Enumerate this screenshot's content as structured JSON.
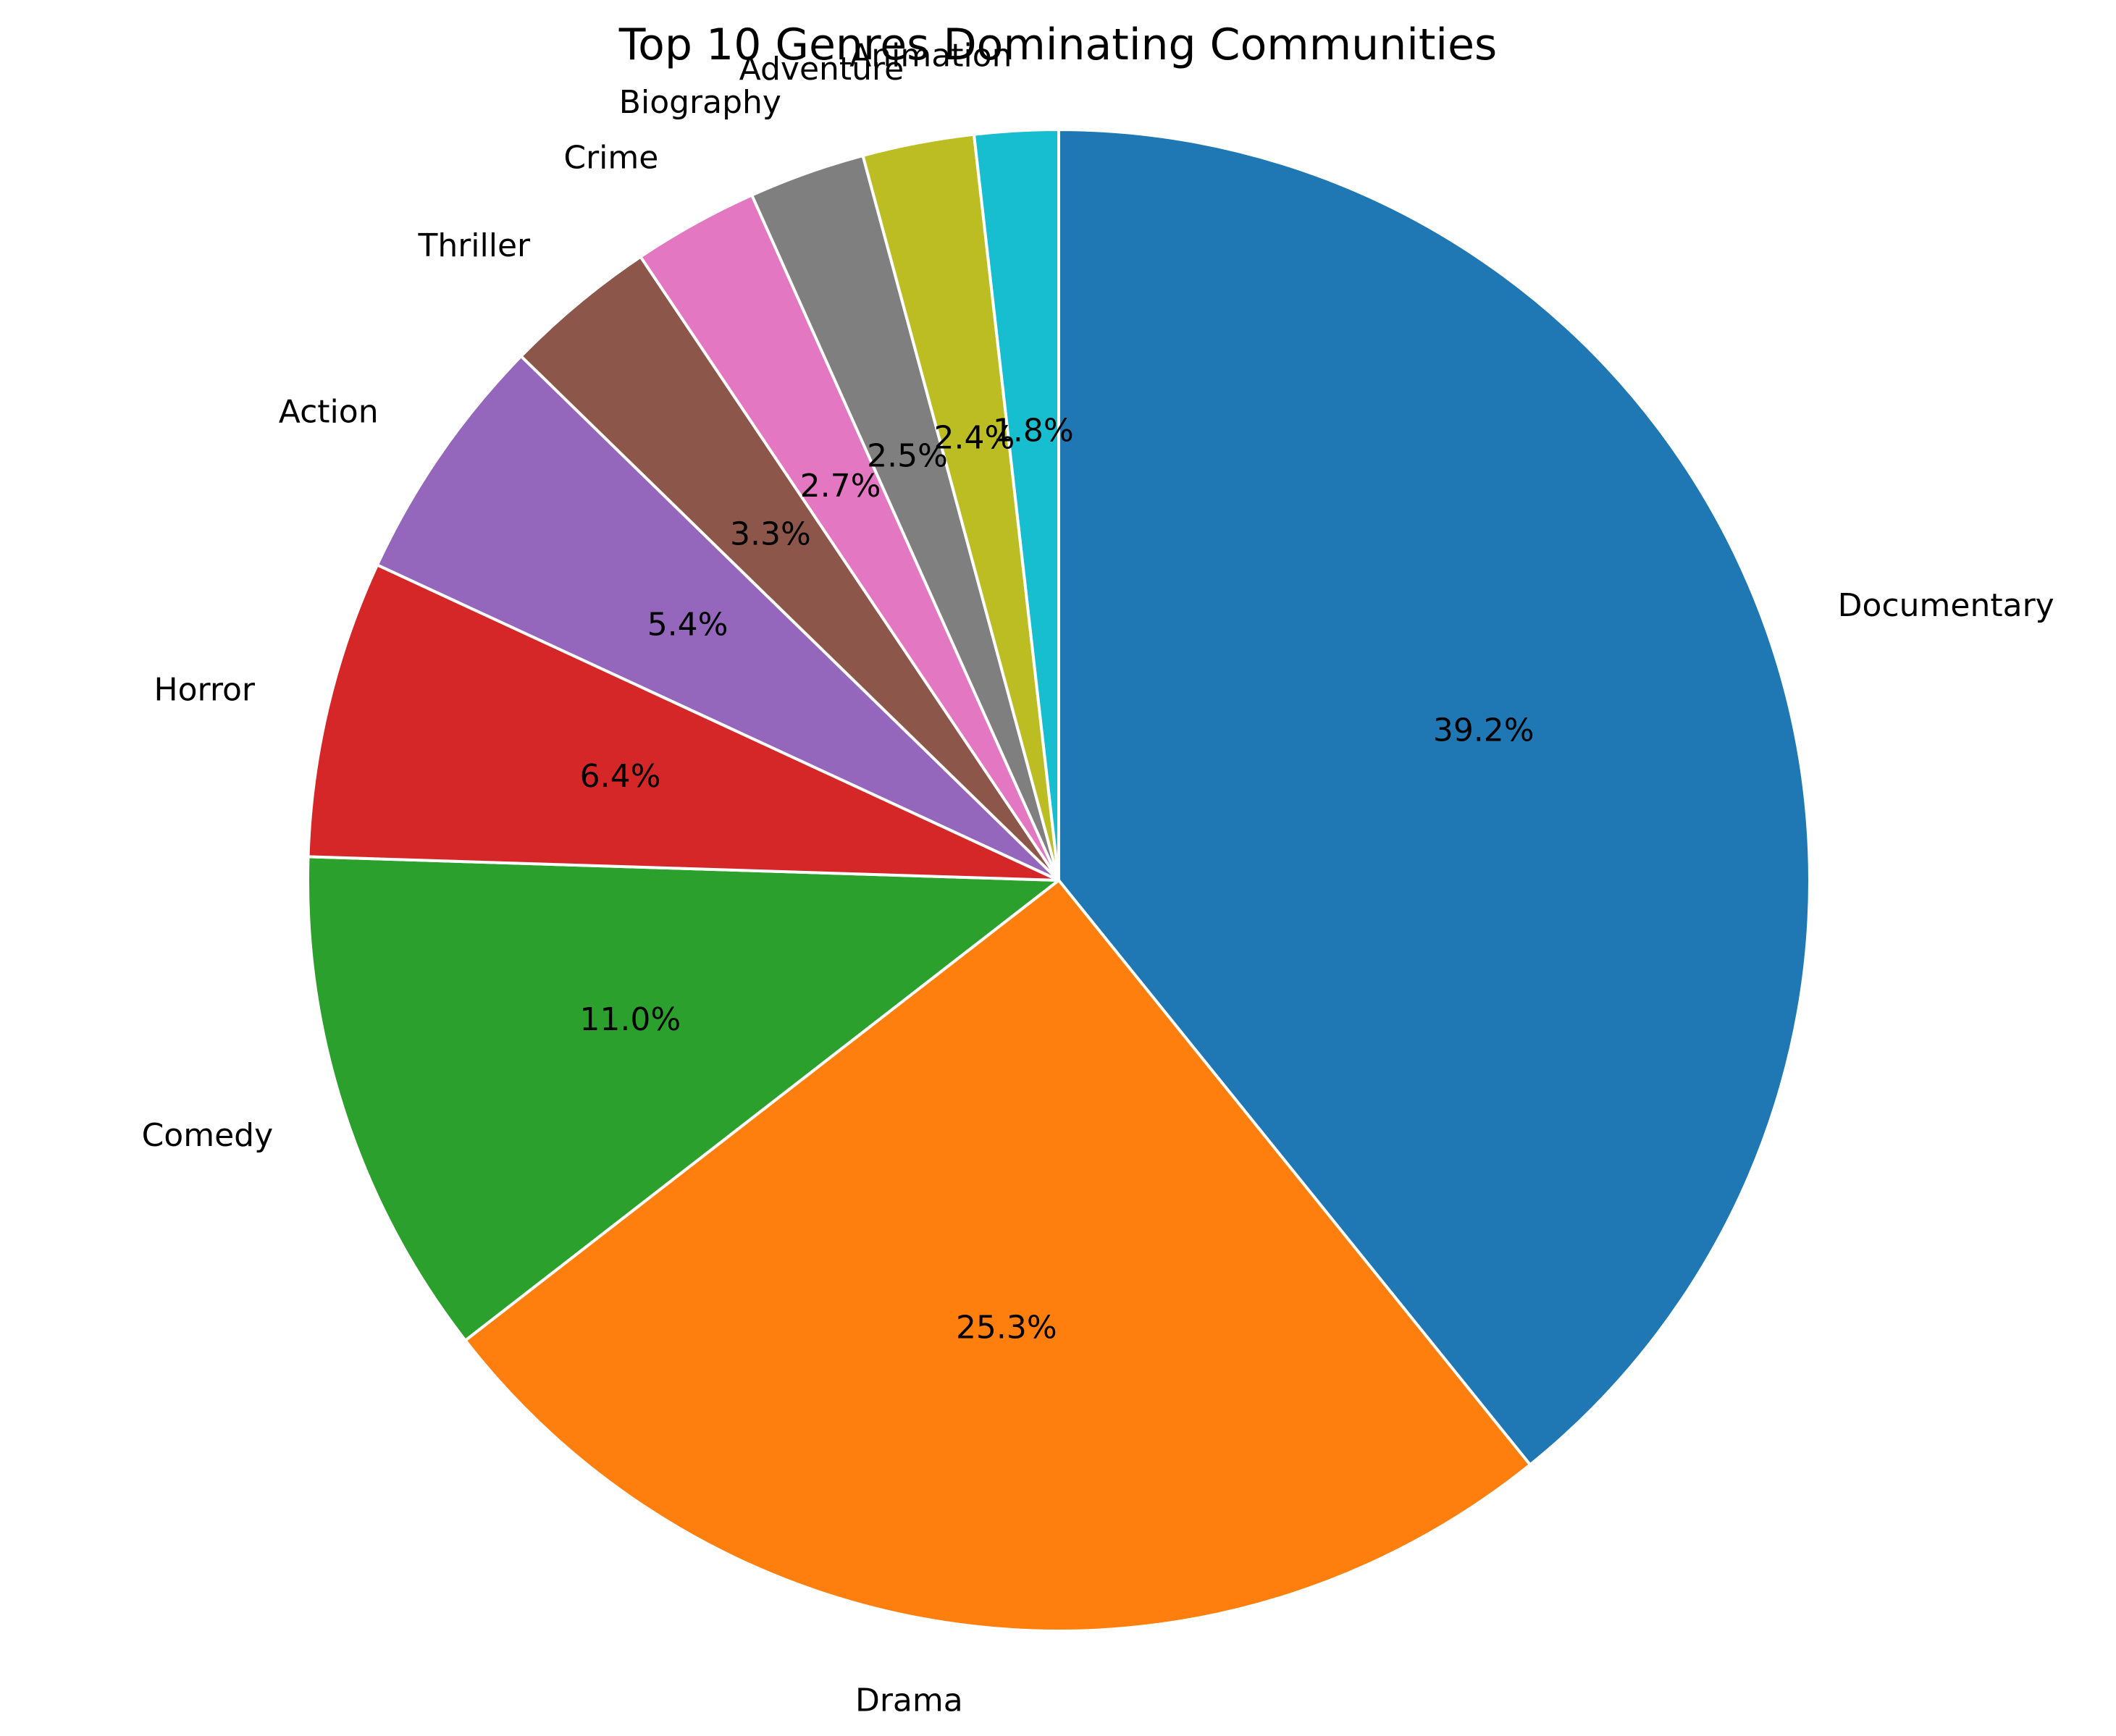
{
  "chart_data": {
    "type": "pie",
    "title": "Top 10 Genres Dominating Communities",
    "start": "top",
    "direction": "clockwise",
    "slices": [
      {
        "label": "Documentary",
        "value": 39.2,
        "pct_label": "39.2%",
        "color": "#1f77b4"
      },
      {
        "label": "Drama",
        "value": 25.3,
        "pct_label": "25.3%",
        "color": "#ff7f0e"
      },
      {
        "label": "Comedy",
        "value": 11.0,
        "pct_label": "11.0%",
        "color": "#2ca02c"
      },
      {
        "label": "Horror",
        "value": 6.4,
        "pct_label": "6.4%",
        "color": "#d62728"
      },
      {
        "label": "Action",
        "value": 5.4,
        "pct_label": "5.4%",
        "color": "#9467bd"
      },
      {
        "label": "Thriller",
        "value": 3.3,
        "pct_label": "3.3%",
        "color": "#8c564b"
      },
      {
        "label": "Crime",
        "value": 2.7,
        "pct_label": "2.7%",
        "color": "#e377c2"
      },
      {
        "label": "Biography",
        "value": 2.5,
        "pct_label": "2.5%",
        "color": "#7f7f7f"
      },
      {
        "label": "Adventure",
        "value": 2.4,
        "pct_label": "2.4%",
        "color": "#bcbd22"
      },
      {
        "label": "Animation",
        "value": 1.8,
        "pct_label": "1.8%",
        "color": "#17becf"
      }
    ]
  }
}
